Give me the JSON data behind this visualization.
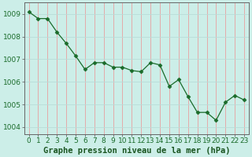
{
  "x": [
    0,
    1,
    2,
    3,
    4,
    5,
    6,
    7,
    8,
    9,
    10,
    11,
    12,
    13,
    14,
    15,
    16,
    17,
    18,
    19,
    20,
    21,
    22,
    23
  ],
  "y": [
    1009.1,
    1008.8,
    1008.8,
    1008.2,
    1007.7,
    1007.15,
    1006.55,
    1006.85,
    1006.85,
    1006.65,
    1006.65,
    1006.5,
    1006.45,
    1006.85,
    1006.75,
    1005.8,
    1006.1,
    1005.35,
    1004.65,
    1004.65,
    1004.3,
    1005.1,
    1005.4,
    1005.2
  ],
  "line_color": "#1a6b2a",
  "marker": "D",
  "marker_size": 2.5,
  "bg_color": "#cceee8",
  "grid_color_x": "#e8a0a0",
  "grid_color_y": "#b8ddd8",
  "xlabel": "Graphe pression niveau de la mer (hPa)",
  "xlabel_fontsize": 7.5,
  "ylabel_ticks": [
    1004,
    1005,
    1006,
    1007,
    1008,
    1009
  ],
  "ylim": [
    1003.7,
    1009.5
  ],
  "xlim": [
    -0.5,
    23.5
  ],
  "tick_fontsize": 6.5,
  "xlabel_color": "#1a5520",
  "tick_color": "#1a6b2a",
  "spine_color": "#666666"
}
